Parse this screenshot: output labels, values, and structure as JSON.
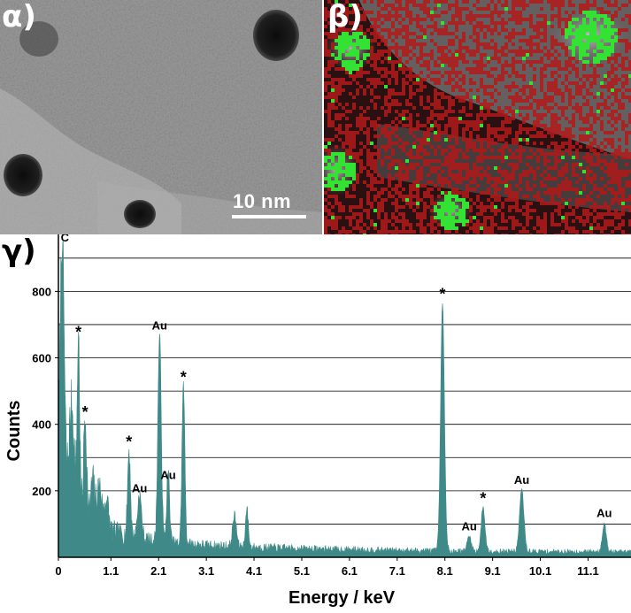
{
  "panel_a": {
    "letter": "α)",
    "scale_bar": "10 nm"
  },
  "panel_b": {
    "letter": "β)"
  },
  "colors": {
    "spectrum": "#3f8a88",
    "axis": "#000000",
    "grid": "#000000",
    "map_red": "#b21a1a",
    "map_green": "#33e233"
  },
  "chart_data": {
    "type": "area",
    "panel_letter": "γ)",
    "xlabel": "Energy / keV",
    "ylabel": "Counts",
    "xlim": [
      0,
      12.0
    ],
    "ylim": [
      0,
      950
    ],
    "x_ticks": [
      0,
      1.1,
      2.1,
      3.1,
      4.1,
      5.1,
      6.1,
      7.1,
      8.1,
      9.1,
      10.1,
      11.1
    ],
    "x_tick_labels": [
      "0",
      "1.1",
      "2.1",
      "3.1",
      "4.1",
      "5.1",
      "6.1",
      "7.1",
      "8.1",
      "9.1",
      "10.1",
      "11.1"
    ],
    "y_ticks": [
      200,
      400,
      600,
      800
    ],
    "y_tick_labels": [
      "200",
      "400",
      "600",
      "800"
    ],
    "gridlines_y": [
      100,
      200,
      300,
      400,
      500,
      600,
      700,
      800,
      900
    ],
    "grid": true,
    "peaks": [
      {
        "x": 0.08,
        "y": 950,
        "w": 0.04,
        "label": "C",
        "label_y": 940
      },
      {
        "x": 0.28,
        "y": 420,
        "w": 0.05,
        "label": "",
        "label_y": 0
      },
      {
        "x": 0.42,
        "y": 640,
        "w": 0.025,
        "label": "*",
        "label_y": 650
      },
      {
        "x": 0.56,
        "y": 400,
        "w": 0.03,
        "label": "*",
        "label_y": 410
      },
      {
        "x": 0.72,
        "y": 210,
        "w": 0.04,
        "label": "",
        "label_y": 0
      },
      {
        "x": 0.86,
        "y": 200,
        "w": 0.05,
        "label": "",
        "label_y": 0
      },
      {
        "x": 1.01,
        "y": 160,
        "w": 0.04,
        "label": "",
        "label_y": 0
      },
      {
        "x": 1.48,
        "y": 310,
        "w": 0.03,
        "label": "*",
        "label_y": 320
      },
      {
        "x": 1.7,
        "y": 180,
        "w": 0.04,
        "label": "Au",
        "label_y": 185
      },
      {
        "x": 2.12,
        "y": 660,
        "w": 0.035,
        "label": "Au",
        "label_y": 675
      },
      {
        "x": 2.3,
        "y": 250,
        "w": 0.03,
        "label": "Au",
        "label_y": 225
      },
      {
        "x": 2.62,
        "y": 510,
        "w": 0.03,
        "label": "*",
        "label_y": 515
      },
      {
        "x": 3.69,
        "y": 120,
        "w": 0.04,
        "label": "",
        "label_y": 0
      },
      {
        "x": 3.95,
        "y": 140,
        "w": 0.03,
        "label": "",
        "label_y": 0
      },
      {
        "x": 8.05,
        "y": 755,
        "w": 0.04,
        "label": "*",
        "label_y": 765
      },
      {
        "x": 8.61,
        "y": 60,
        "w": 0.04,
        "label": "Au",
        "label_y": 70
      },
      {
        "x": 8.9,
        "y": 145,
        "w": 0.04,
        "label": "*",
        "label_y": 150
      },
      {
        "x": 9.71,
        "y": 200,
        "w": 0.045,
        "label": "Au",
        "label_y": 210
      },
      {
        "x": 11.44,
        "y": 100,
        "w": 0.04,
        "label": "Au",
        "label_y": 110
      }
    ]
  }
}
